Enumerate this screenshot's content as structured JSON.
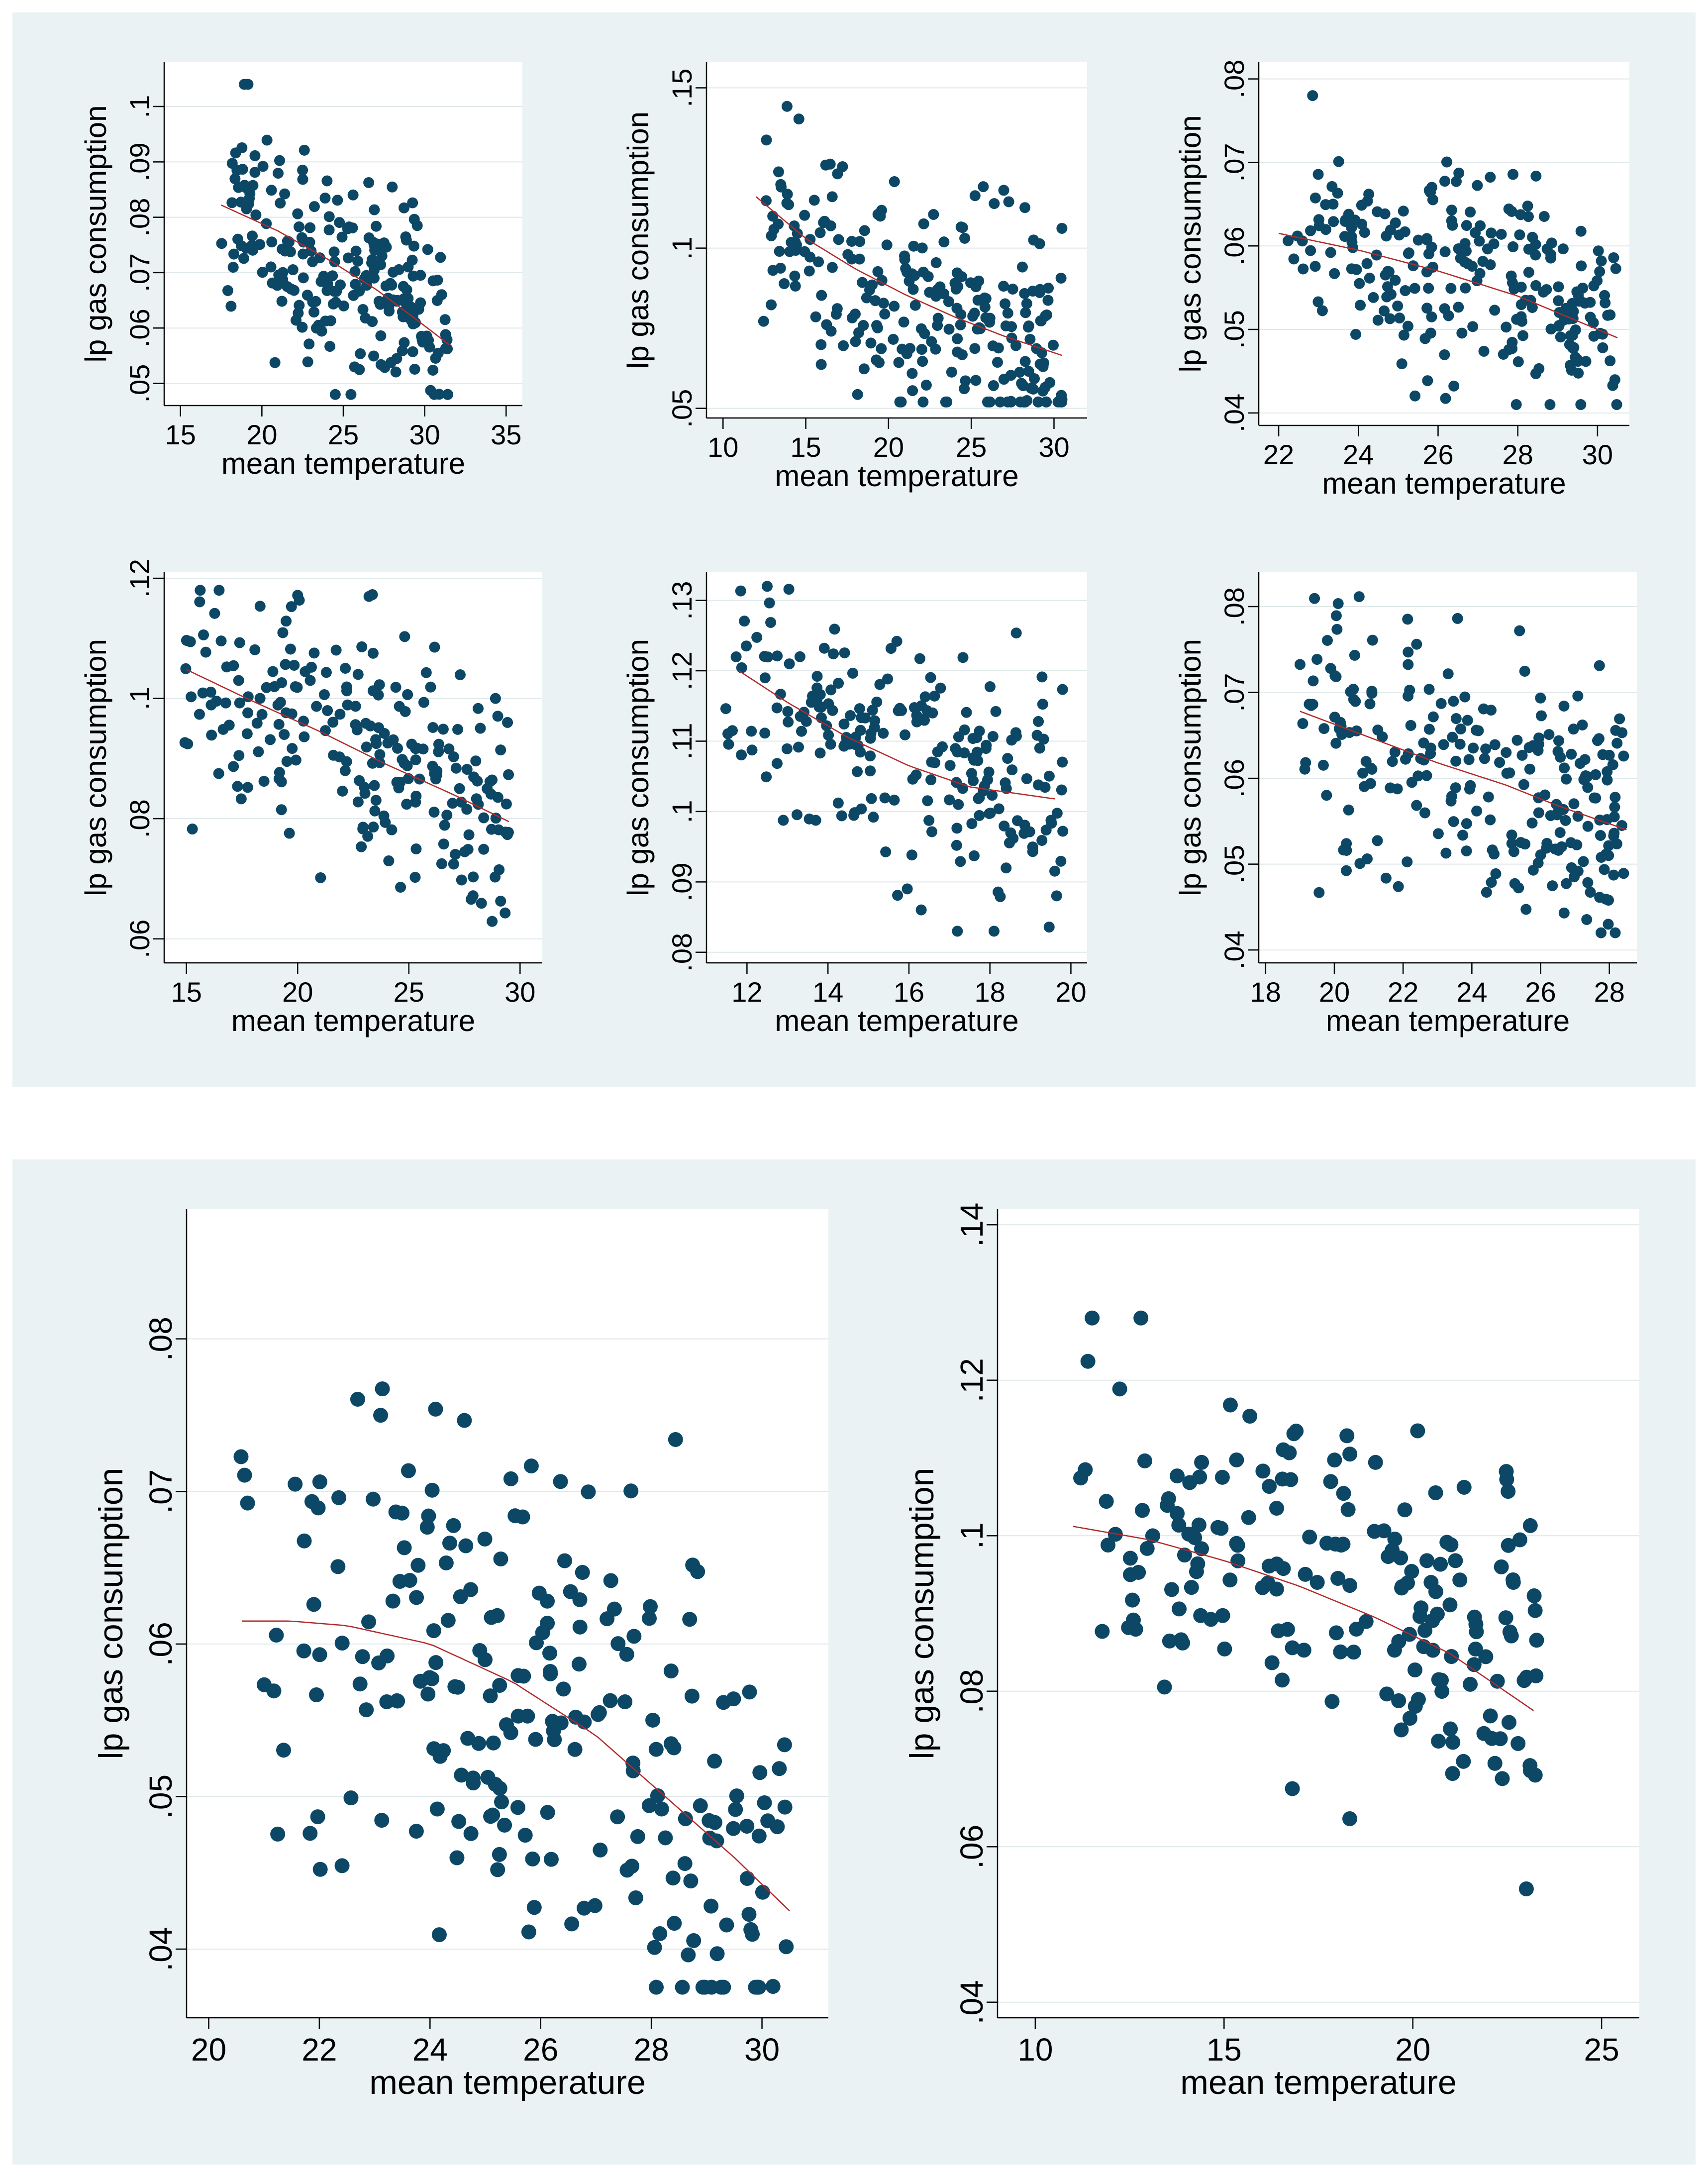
{
  "colors": {
    "panel_bg": "#eaf2f3",
    "points": "#0c4766",
    "fit_line": "#b12a2a"
  },
  "chart_data": [
    {
      "type": "scatter",
      "xlabel": "mean temperature",
      "ylabel": "lp gas consumption",
      "xlim": [
        14,
        36
      ],
      "ylim": [
        0.046,
        0.108
      ],
      "xticks": [
        15,
        20,
        25,
        30,
        35
      ],
      "yticks": [
        0.05,
        0.06,
        0.07,
        0.08,
        0.09,
        0.1
      ],
      "yticklabels": [
        ".05",
        ".06",
        ".07",
        ".08",
        ".09",
        ".1"
      ],
      "x_range": [
        17.5,
        31.5
      ],
      "y_range": [
        0.048,
        0.104
      ],
      "fit": [
        [
          17.5,
          0.0822
        ],
        [
          21,
          0.0775
        ],
        [
          24,
          0.0725
        ],
        [
          27,
          0.067
        ],
        [
          29.5,
          0.0615
        ],
        [
          31.5,
          0.057
        ]
      ],
      "n_points": 230,
      "seed": 11
    },
    {
      "type": "scatter",
      "xlabel": "mean temperature",
      "ylabel": "lp gas consumption",
      "xlim": [
        9,
        32
      ],
      "ylim": [
        0.047,
        0.158
      ],
      "xticks": [
        10,
        15,
        20,
        25,
        30
      ],
      "yticks": [
        0.05,
        0.1,
        0.15
      ],
      "yticklabels": [
        ".05",
        ".1",
        ".15"
      ],
      "x_range": [
        12,
        30.5
      ],
      "y_range": [
        0.052,
        0.155
      ],
      "fit": [
        [
          12,
          0.116
        ],
        [
          15,
          0.103
        ],
        [
          18,
          0.0935
        ],
        [
          21,
          0.0855
        ],
        [
          24,
          0.0785
        ],
        [
          27,
          0.0725
        ],
        [
          30.5,
          0.0665
        ]
      ],
      "n_points": 250,
      "seed": 23
    },
    {
      "type": "scatter",
      "xlabel": "mean temperature",
      "ylabel": "lp gas consumption",
      "xlim": [
        21.5,
        30.8
      ],
      "ylim": [
        0.0385,
        0.082
      ],
      "xticks": [
        22,
        24,
        26,
        28,
        30
      ],
      "yticks": [
        0.04,
        0.05,
        0.06,
        0.07,
        0.08
      ],
      "yticklabels": [
        ".04",
        ".05",
        ".06",
        ".07",
        ".08"
      ],
      "x_range": [
        22,
        30.5
      ],
      "y_range": [
        0.041,
        0.078
      ],
      "fit": [
        [
          22,
          0.0615
        ],
        [
          24,
          0.0595
        ],
        [
          26,
          0.057
        ],
        [
          28,
          0.054
        ],
        [
          30.5,
          0.049
        ]
      ],
      "n_points": 240,
      "seed": 37
    },
    {
      "type": "scatter",
      "xlabel": "mean temperature",
      "ylabel": "lp gas consumption",
      "xlim": [
        14,
        31
      ],
      "ylim": [
        0.056,
        0.121
      ],
      "xticks": [
        15,
        20,
        25,
        30
      ],
      "yticks": [
        0.06,
        0.08,
        0.1,
        0.12
      ],
      "yticklabels": [
        ".06",
        ".08",
        ".1",
        ".12"
      ],
      "x_range": [
        14.5,
        29.5
      ],
      "y_range": [
        0.057,
        0.118
      ],
      "fit": [
        [
          15,
          0.1048
        ],
        [
          18,
          0.0995
        ],
        [
          21,
          0.0945
        ],
        [
          24,
          0.089
        ],
        [
          27,
          0.084
        ],
        [
          29.5,
          0.0795
        ]
      ],
      "n_points": 230,
      "seed": 41
    },
    {
      "type": "scatter",
      "xlabel": "mean temperature",
      "ylabel": "lp gas consumption",
      "xlim": [
        11,
        20.4
      ],
      "ylim": [
        0.0785,
        0.134
      ],
      "xticks": [
        12,
        14,
        16,
        18,
        20
      ],
      "yticks": [
        0.08,
        0.09,
        0.1,
        0.11,
        0.12,
        0.13
      ],
      "yticklabels": [
        ".08",
        ".09",
        ".1",
        ".11",
        ".12",
        ".13"
      ],
      "x_range": [
        11.3,
        19.8
      ],
      "y_range": [
        0.083,
        0.132
      ],
      "fit": [
        [
          11.8,
          0.12
        ],
        [
          13,
          0.1155
        ],
        [
          14.5,
          0.1105
        ],
        [
          16,
          0.1065
        ],
        [
          17.5,
          0.1035
        ],
        [
          19.6,
          0.1018
        ]
      ],
      "n_points": 220,
      "seed": 53
    },
    {
      "type": "scatter",
      "xlabel": "mean temperature",
      "ylabel": "lp gas consumption",
      "xlim": [
        17.8,
        28.8
      ],
      "ylim": [
        0.0385,
        0.084
      ],
      "xticks": [
        18,
        20,
        22,
        24,
        26,
        28
      ],
      "yticks": [
        0.04,
        0.05,
        0.06,
        0.07,
        0.08
      ],
      "yticklabels": [
        ".04",
        ".05",
        ".06",
        ".07",
        ".08"
      ],
      "x_range": [
        19,
        28.5
      ],
      "y_range": [
        0.042,
        0.083
      ],
      "fit": [
        [
          19,
          0.0678
        ],
        [
          21,
          0.0648
        ],
        [
          23,
          0.0618
        ],
        [
          25,
          0.0592
        ],
        [
          26.5,
          0.0568
        ],
        [
          28.5,
          0.054
        ]
      ],
      "n_points": 240,
      "seed": 67
    },
    {
      "type": "scatter",
      "xlabel": "mean temperature",
      "ylabel": "lp gas consumption",
      "xlim": [
        19.6,
        31.2
      ],
      "ylim": [
        0.0355,
        0.0885
      ],
      "xticks": [
        20,
        22,
        24,
        26,
        28,
        30
      ],
      "yticks": [
        0.04,
        0.05,
        0.06,
        0.07,
        0.08
      ],
      "yticklabels": [
        ".04",
        ".05",
        ".06",
        ".07",
        ".08"
      ],
      "x_range": [
        20.5,
        30.5
      ],
      "y_range": [
        0.0375,
        0.083
      ],
      "fit": [
        [
          20.6,
          0.0615
        ],
        [
          21.5,
          0.0615
        ],
        [
          22.5,
          0.0612
        ],
        [
          24,
          0.06
        ],
        [
          25.5,
          0.0575
        ],
        [
          27,
          0.054
        ],
        [
          28.5,
          0.0492
        ],
        [
          29.5,
          0.046
        ],
        [
          30.5,
          0.0425
        ]
      ],
      "n_points": 230,
      "seed": 79
    },
    {
      "type": "scatter",
      "xlabel": "mean temperature",
      "ylabel": "lp gas consumption",
      "xlim": [
        9,
        26
      ],
      "ylim": [
        0.038,
        0.142
      ],
      "xticks": [
        10,
        15,
        20,
        25
      ],
      "yticks": [
        0.04,
        0.06,
        0.08,
        0.1,
        0.12,
        0.14
      ],
      "yticklabels": [
        ".04",
        ".06",
        ".08",
        ".1",
        ".12",
        ".14"
      ],
      "x_range": [
        11,
        23.3
      ],
      "y_range": [
        0.051,
        0.128
      ],
      "fit": [
        [
          11,
          0.1012
        ],
        [
          13,
          0.0995
        ],
        [
          15,
          0.0968
        ],
        [
          17,
          0.0935
        ],
        [
          19,
          0.0895
        ],
        [
          21,
          0.0848
        ],
        [
          23.2,
          0.0775
        ]
      ],
      "n_points": 190,
      "seed": 97
    }
  ]
}
